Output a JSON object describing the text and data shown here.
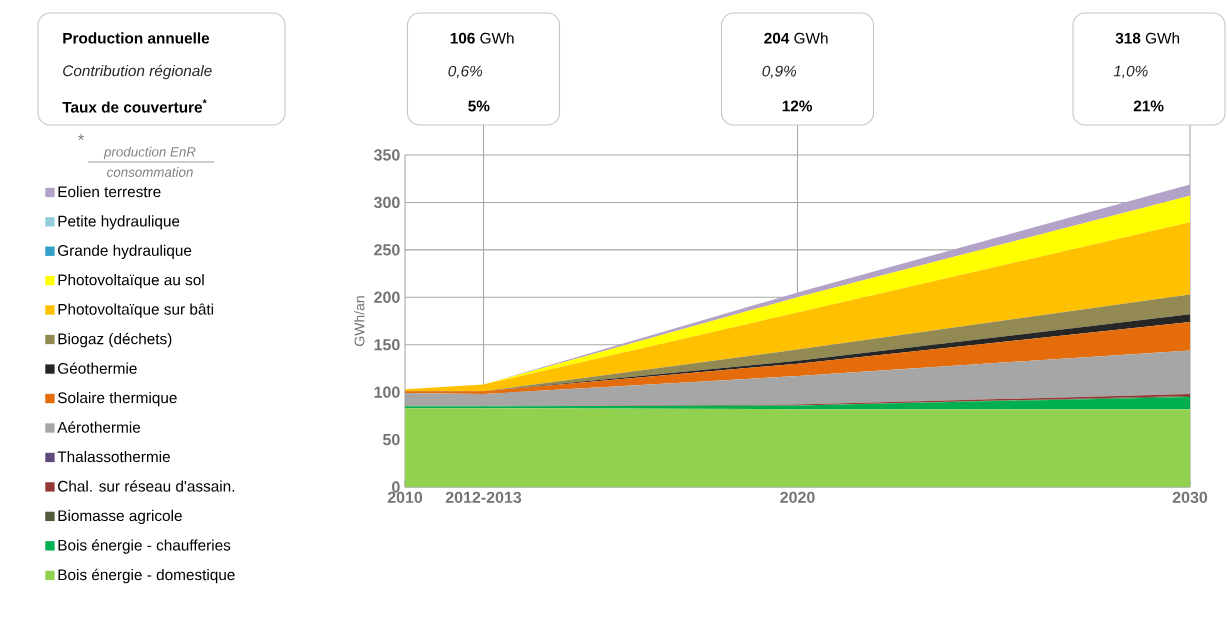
{
  "chart_data": {
    "type": "area",
    "stacked": true,
    "ylabel": "GWh/an",
    "x": [
      2010,
      2012,
      2020,
      2030
    ],
    "xlim": [
      2010,
      2030
    ],
    "xticks": [
      2010,
      {
        "value": 2012,
        "label": "2012-2013"
      },
      2020,
      2030
    ],
    "ylim": [
      0,
      350
    ],
    "yticks": [
      0,
      50,
      100,
      150,
      200,
      250,
      300,
      350
    ],
    "grid": true,
    "legend": "left",
    "series": [
      {
        "name": "Bois énergie - domestique",
        "color": "#92d050",
        "values": [
          83,
          83,
          82,
          82
        ]
      },
      {
        "name": "Bois énergie - chaufferies",
        "color": "#00b050",
        "values": [
          2,
          2,
          4,
          13
        ]
      },
      {
        "name": "Biomasse agricole",
        "color": "#4f5b3a",
        "values": [
          0,
          0,
          0,
          1
        ]
      },
      {
        "name": "Chal. sur réseau d'assain.",
        "color": "#953735",
        "values": [
          0,
          0,
          1,
          2
        ]
      },
      {
        "name": "Thalassothermie",
        "color": "#604a7b",
        "values": [
          null,
          null,
          null,
          null
        ]
      },
      {
        "name": "Aérothermie",
        "color": "#a6a6a6",
        "values": [
          14,
          13,
          30,
          46
        ]
      },
      {
        "name": "Solaire thermique",
        "color": "#e46c0a",
        "values": [
          2,
          3,
          13,
          30
        ]
      },
      {
        "name": "Géothermie",
        "color": "#262626",
        "values": [
          0,
          0,
          3,
          8
        ]
      },
      {
        "name": "Biogaz (déchets)",
        "color": "#938953",
        "values": [
          0,
          0,
          12,
          21
        ]
      },
      {
        "name": "Photovoltaïque sur bâti",
        "color": "#ffc000",
        "values": [
          2,
          7,
          39,
          76
        ]
      },
      {
        "name": "Photovoltaïque au sol",
        "color": "#ffff00",
        "values": [
          0,
          0,
          16,
          28
        ]
      },
      {
        "name": "Grande hydraulique",
        "color": "#31a0c8",
        "values": [
          null,
          null,
          null,
          null
        ]
      },
      {
        "name": "Petite hydraulique",
        "color": "#93cddd",
        "values": [
          null,
          null,
          null,
          null
        ]
      },
      {
        "name": "Eolien terrestre",
        "color": "#b3a2c7",
        "values": [
          0,
          0,
          5,
          12
        ]
      }
    ],
    "annotations": [
      "Production annuelle",
      "Contribution régionale",
      "Taux de couverture$^{*}$",
      "**106** GWh",
      "0,6%",
      "5%",
      "**204** GWh",
      "0,9%",
      "12%",
      "**318** GWh",
      "1,0%",
      "21%",
      "*",
      "production EnR",
      "consommation"
    ]
  }
}
